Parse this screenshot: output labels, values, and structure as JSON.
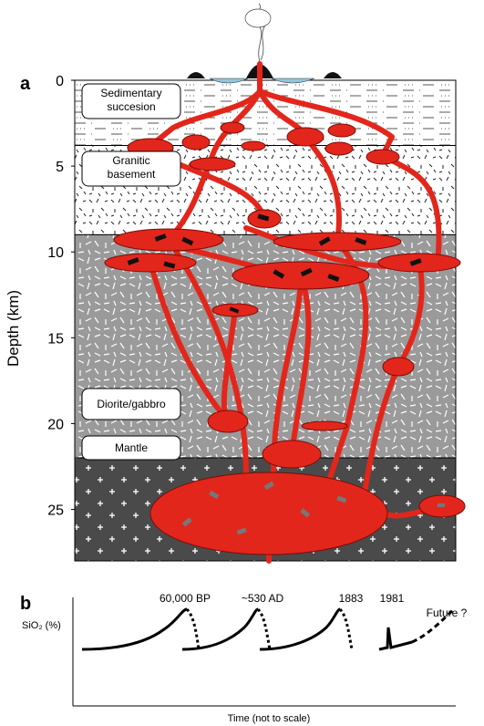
{
  "panel_a": {
    "label": "a",
    "axis_title": "Depth (km)",
    "ylim": [
      0,
      28
    ],
    "yticks": [
      0,
      5,
      10,
      15,
      20,
      25
    ],
    "layers": [
      {
        "name": "Sedimentary succesion",
        "top": 0,
        "bottom": 3.8
      },
      {
        "name": "Granitic basement",
        "top": 3.8,
        "bottom": 9
      },
      {
        "name": "Diorite/gabbro",
        "top": 9,
        "bottom": 22
      },
      {
        "name": "Mantle",
        "top": 22,
        "bottom": 28
      }
    ]
  },
  "panel_b": {
    "label": "b",
    "y_label": "SiO₂ (%)",
    "x_label": "Time (not to scale)",
    "events": [
      "60,000 BP",
      "~530 AD",
      "1883",
      "1981",
      "Future ?"
    ]
  }
}
